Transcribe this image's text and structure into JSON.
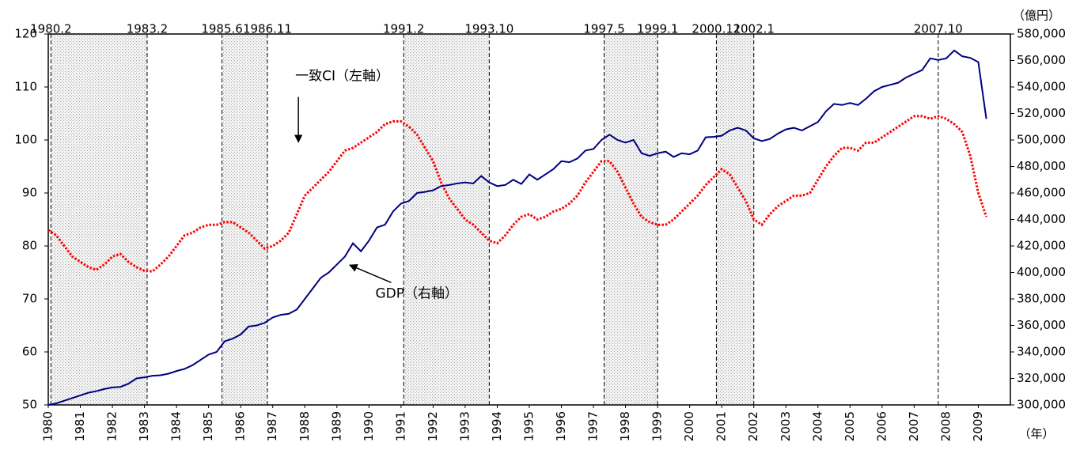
{
  "chart_data": {
    "type": "line",
    "x_label": "（年）",
    "y2_label": "（億円）",
    "xlim": [
      1980,
      2010
    ],
    "xticks": [
      1980,
      1981,
      1982,
      1983,
      1984,
      1985,
      1986,
      1987,
      1988,
      1989,
      1990,
      1991,
      1992,
      1993,
      1994,
      1995,
      1996,
      1997,
      1998,
      1999,
      2000,
      2001,
      2002,
      2003,
      2004,
      2005,
      2006,
      2007,
      2008,
      2009
    ],
    "ylim": [
      50,
      120
    ],
    "yticks": [
      50,
      60,
      70,
      80,
      90,
      100,
      110,
      120
    ],
    "y2lim": [
      300000,
      580000
    ],
    "y2ticks": [
      {
        "value": 300000,
        "label": "300,000"
      },
      {
        "value": 320000,
        "label": "320,000"
      },
      {
        "value": 340000,
        "label": "340,000"
      },
      {
        "value": 360000,
        "label": "360,000"
      },
      {
        "value": 380000,
        "label": "380,000"
      },
      {
        "value": 400000,
        "label": "400,000"
      },
      {
        "value": 420000,
        "label": "420,000"
      },
      {
        "value": 440000,
        "label": "440,000"
      },
      {
        "value": 460000,
        "label": "460,000"
      },
      {
        "value": 480000,
        "label": "480,000"
      },
      {
        "value": 500000,
        "label": "500,000"
      },
      {
        "value": 520000,
        "label": "520,000"
      },
      {
        "value": 540000,
        "label": "540,000"
      },
      {
        "value": 560000,
        "label": "560,000"
      },
      {
        "value": 580000,
        "label": "580,000"
      }
    ],
    "recessions": [
      {
        "peak": {
          "value": 1980.083,
          "label": "1980.2"
        },
        "trough": {
          "value": 1983.083,
          "label": "1983.2"
        }
      },
      {
        "peak": {
          "value": 1985.417,
          "label": "1985.6"
        },
        "trough": {
          "value": 1986.833,
          "label": "1986.11"
        }
      },
      {
        "peak": {
          "value": 1991.083,
          "label": "1991.2"
        },
        "trough": {
          "value": 1993.75,
          "label": "1993.10"
        }
      },
      {
        "peak": {
          "value": 1997.333,
          "label": "1997.5"
        },
        "trough": {
          "value": 1999.0,
          "label": "1999.1"
        }
      },
      {
        "peak": {
          "value": 2000.833,
          "label": "2000.11"
        },
        "trough": {
          "value": 2002.0,
          "label": "2002.1"
        }
      },
      {
        "peak": {
          "value": 2007.75,
          "label": "2007.10"
        }
      }
    ],
    "annotations": [
      {
        "text": "一致CI（左軸）",
        "x": 1987.7,
        "y": 112,
        "arrow_to": [
          1987.8,
          99
        ]
      },
      {
        "text": "GDP（右軸）",
        "x": 1990.2,
        "y": 71,
        "arrow_to": [
          1989.3,
          77
        ]
      }
    ],
    "x": [
      1980,
      1980.25,
      1980.5,
      1980.75,
      1981,
      1981.25,
      1981.5,
      1981.75,
      1982,
      1982.25,
      1982.5,
      1982.75,
      1983,
      1983.25,
      1983.5,
      1983.75,
      1984,
      1984.25,
      1984.5,
      1984.75,
      1985,
      1985.25,
      1985.5,
      1985.75,
      1986,
      1986.25,
      1986.5,
      1986.75,
      1987,
      1987.25,
      1987.5,
      1987.75,
      1988,
      1988.25,
      1988.5,
      1988.75,
      1989,
      1989.25,
      1989.5,
      1989.75,
      1990,
      1990.25,
      1990.5,
      1990.75,
      1991,
      1991.25,
      1991.5,
      1991.75,
      1992,
      1992.25,
      1992.5,
      1992.75,
      1993,
      1993.25,
      1993.5,
      1993.75,
      1994,
      1994.25,
      1994.5,
      1994.75,
      1995,
      1995.25,
      1995.5,
      1995.75,
      1996,
      1996.25,
      1996.5,
      1996.75,
      1997,
      1997.25,
      1997.5,
      1997.75,
      1998,
      1998.25,
      1998.5,
      1998.75,
      1999,
      1999.25,
      1999.5,
      1999.75,
      2000,
      2000.25,
      2000.5,
      2000.75,
      2001,
      2001.25,
      2001.5,
      2001.75,
      2002,
      2002.25,
      2002.5,
      2002.75,
      2003,
      2003.25,
      2003.5,
      2003.75,
      2004,
      2004.25,
      2004.5,
      2004.75,
      2005,
      2005.25,
      2005.5,
      2005.75,
      2006,
      2006.25,
      2006.5,
      2006.75,
      2007,
      2007.25,
      2007.5,
      2007.75,
      2008,
      2008.25,
      2008.5,
      2008.75,
      2009,
      2009.25
    ],
    "series": [
      {
        "name": "一致CI",
        "color": "#ff0000",
        "axis": "y",
        "dash": true,
        "values": [
          83,
          82,
          80,
          78,
          77,
          76,
          75.5,
          76.5,
          78,
          78.5,
          77,
          76,
          75.3,
          75.2,
          76.5,
          78,
          80,
          82,
          82.5,
          83.5,
          84,
          84,
          84.5,
          84.5,
          83.5,
          82.5,
          81,
          79.5,
          80,
          81,
          82.5,
          86,
          89.5,
          91,
          92.5,
          94,
          96,
          98,
          98.5,
          99.5,
          100.5,
          101.5,
          103,
          103.5,
          103.5,
          102.5,
          101,
          98.5,
          96,
          92,
          89,
          87,
          85,
          84,
          82.5,
          81,
          80.5,
          82,
          84,
          85.5,
          86,
          85,
          85.5,
          86.5,
          87,
          88,
          89.5,
          92,
          94,
          96,
          96,
          94,
          91,
          88,
          85.5,
          84.5,
          84,
          84,
          85,
          86.5,
          88,
          89.5,
          91.5,
          93,
          94.5,
          93.5,
          91,
          88.5,
          85,
          84,
          86,
          87.5,
          88.5,
          89.5,
          89.5,
          90,
          92.5,
          95,
          97,
          98.5,
          98.5,
          98,
          99.5,
          99.5,
          100.5,
          101.5,
          102.5,
          103.5,
          104.5,
          104.5,
          104,
          104.5,
          104,
          103,
          101.5,
          97,
          90,
          85.5
        ]
      },
      {
        "name": "GDP",
        "color": "#000080",
        "axis": "y2",
        "dash": false,
        "values": [
          300000,
          301200,
          303200,
          305200,
          307200,
          309200,
          310400,
          312000,
          313200,
          313600,
          316000,
          320000,
          320800,
          322000,
          322400,
          323600,
          325600,
          327200,
          330000,
          334000,
          338000,
          340000,
          348000,
          350000,
          353200,
          359200,
          360000,
          362000,
          366000,
          368000,
          368800,
          372000,
          380000,
          388000,
          396000,
          400000,
          406000,
          412000,
          422000,
          416000,
          424000,
          434000,
          436000,
          446000,
          452000,
          454000,
          460000,
          460800,
          462000,
          465200,
          466000,
          467200,
          468000,
          467200,
          472800,
          468000,
          465200,
          466000,
          470000,
          466800,
          474000,
          470000,
          474000,
          478000,
          484000,
          483200,
          486000,
          492000,
          493200,
          500000,
          504000,
          500000,
          498000,
          500000,
          490000,
          488000,
          490000,
          491200,
          487200,
          490000,
          489200,
          492000,
          502000,
          502400,
          503200,
          507200,
          509200,
          507200,
          501200,
          499200,
          500800,
          504800,
          508000,
          509200,
          507200,
          510400,
          513600,
          521600,
          527200,
          526400,
          528000,
          526400,
          531200,
          536800,
          540000,
          541600,
          543200,
          547200,
          550000,
          552800,
          561600,
          560400,
          561600,
          567600,
          563200,
          562000,
          558800,
          516000
        ]
      }
    ]
  }
}
